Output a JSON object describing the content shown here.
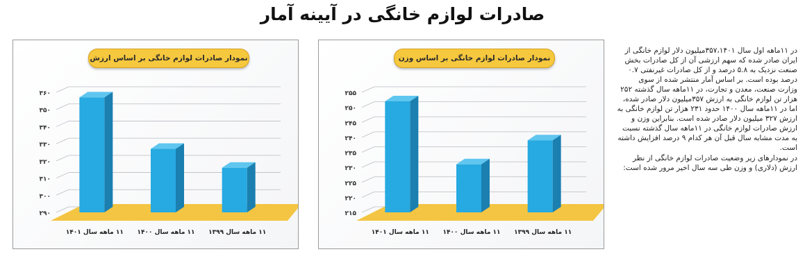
{
  "page": {
    "title": "صادرات لوازم خانگی در آیینه آمار"
  },
  "article": {
    "paragraph1": "در ۱۱ماهه اول سال ۳۵۷،۱۴۰۱میلیون دلار لوازم خانگی از ایران صادر شده که سهم ارزشی آن از کل صادرات بخش صنعت نزدیک به ۵.۸ درصد و از کل صادرات غیرنفتی ۰.۷ درصد بوده است. بر اساس آمار منتشر شده از سوی وزارت صنعت، معدن و تجارت، در ۱۱ماهه سال گذشته ۲۵۲ هزار تن لوازم خانگی به ارزش ۳۵۷میلیون دلار صادر شده، اما در ۱۱ماهه سال ۱۴۰۰ حدود ۲۳۱ هزار تن لوازم خانگی به ارزش ۳۲۷ میلیون دلار صادر شده است. بنابراین وزن و ارزش صادرات لوازم خانگی در ۱۱ماهه سال گذشته نسبت به مدت مشابه سال قبل آن هر کدام ۹ درصد افزایش داشته است.",
    "paragraph2": "در نمودارهای زیر وضعیت صادرات لوازم خانگی از نظر ارزش (دلاری) و وزن طی سه سال اخیر مرور شده است:"
  },
  "colors": {
    "bar_front": "#27a9e1",
    "bar_side": "#1b7fb0",
    "bar_top": "#5fc6ef",
    "floor": "#f4c542",
    "title_bg": "#f6c83e"
  },
  "chart_data": [
    {
      "type": "bar",
      "title": "نمودار صادرات لوازم خانگی بر اساس ارزش",
      "categories": [
        "۱۱ ماهه سال ۱۴۰۱",
        "۱۱ ماهه سال ۱۴۰۰",
        "۱۱ ماهه سال ۱۳۹۹"
      ],
      "values": [
        357,
        327,
        316
      ],
      "ylim": [
        290,
        360
      ],
      "yticks": [
        290,
        300,
        310,
        320,
        330,
        340,
        350,
        360
      ],
      "ytick_labels": [
        "۲۹۰",
        "۳۰۰",
        "۳۱۰",
        "۳۲۰",
        "۳۳۰",
        "۳۴۰",
        "۳۵۰",
        "۳۶۰"
      ],
      "grid": true
    },
    {
      "type": "bar",
      "title": "نمودار صادرات لوازم خانگی بر اساس وزن",
      "categories": [
        "۱۱ ماهه سال ۱۴۰۱",
        "۱۱ ماهه سال ۱۴۰۰",
        "۱۱ ماهه سال ۱۳۹۹"
      ],
      "values": [
        252,
        231,
        239
      ],
      "ylim": [
        215,
        255
      ],
      "yticks": [
        215,
        220,
        225,
        230,
        235,
        240,
        245,
        250,
        255
      ],
      "ytick_labels": [
        "۲۱۵",
        "۲۲۰",
        "۲۲۵",
        "۲۳۰",
        "۲۳۵",
        "۲۴۰",
        "۲۴۵",
        "۲۵۰",
        "۲۵۵"
      ],
      "grid": true
    }
  ]
}
